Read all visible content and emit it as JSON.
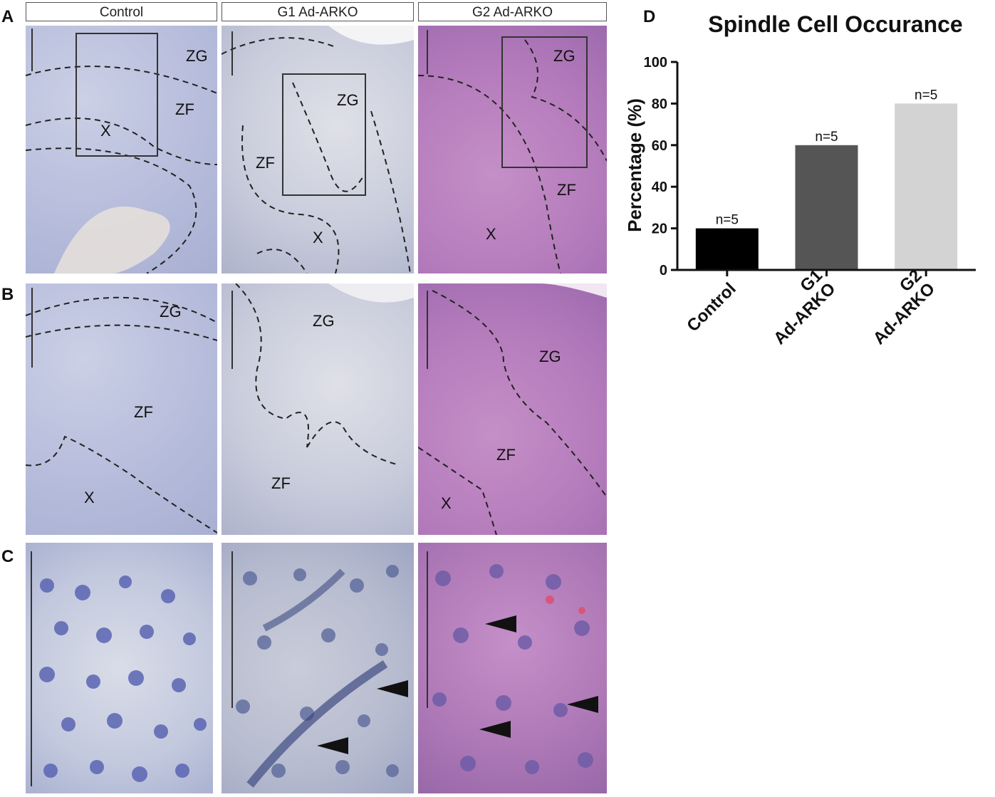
{
  "panel_labels": {
    "a": "A",
    "b": "B",
    "c": "C",
    "d": "D"
  },
  "column_headers": [
    "Control",
    "G1 Ad-ARKO",
    "G2 Ad-ARKO"
  ],
  "zone_labels": {
    "zg": "ZG",
    "zf": "ZF",
    "x": "X"
  },
  "colors": {
    "control_bar": "#000000",
    "g1_bar": "#555555",
    "g2_bar": "#d3d3d3",
    "hematoxylin": "#5560b0",
    "eosin": "#b57cbc"
  },
  "chart_data": {
    "type": "bar",
    "title": "Spindle Cell Occurance",
    "ylabel": "Percentage (%)",
    "xlabel": "",
    "categories": [
      "Control",
      "G1 Ad-ARKO",
      "G2 Ad-ARKO"
    ],
    "category_lines": [
      [
        "Control"
      ],
      [
        "G1",
        "Ad-ARKO"
      ],
      [
        "G2",
        "Ad-ARKO"
      ]
    ],
    "values": [
      20,
      60,
      80
    ],
    "data_labels": [
      "n=5",
      "n=5",
      "n=5"
    ],
    "colors": [
      "#000000",
      "#555555",
      "#d3d3d3"
    ],
    "ylim": [
      0,
      100
    ],
    "yticks": [
      0,
      20,
      40,
      60,
      80,
      100
    ],
    "grid": false,
    "legend": "none"
  }
}
